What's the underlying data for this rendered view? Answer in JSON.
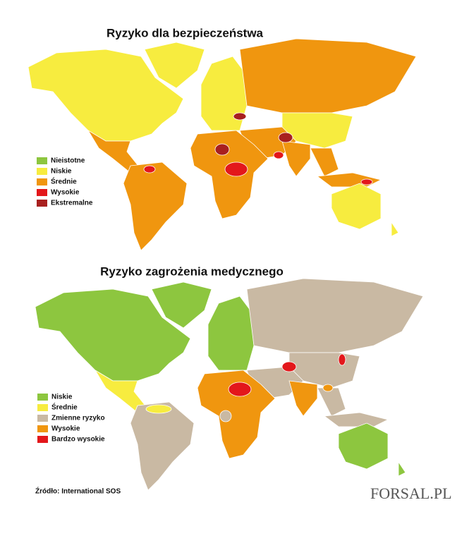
{
  "maps": [
    {
      "title": "Ryzyko dla bezpieczeństwa",
      "legend": [
        {
          "label": "Nieistotne",
          "color": "#8dc63f"
        },
        {
          "label": "Niskie",
          "color": "#f7ec3f"
        },
        {
          "label": "Średnie",
          "color": "#f0960f"
        },
        {
          "label": "Wysokie",
          "color": "#e3171b"
        },
        {
          "label": "Ekstremalne",
          "color": "#a8201f"
        }
      ]
    },
    {
      "title": "Ryzyko zagrożenia medycznego",
      "legend": [
        {
          "label": "Niskie",
          "color": "#8dc63f"
        },
        {
          "label": "Średnie",
          "color": "#f7ec3f"
        },
        {
          "label": "Zmienne ryzyko",
          "color": "#c9b9a3"
        },
        {
          "label": "Wysokie",
          "color": "#f0960f"
        },
        {
          "label": "Bardzo wysokie",
          "color": "#e3171b"
        }
      ]
    }
  ],
  "source": "Źródło: International SOS",
  "logo": "FORSAL.PL"
}
